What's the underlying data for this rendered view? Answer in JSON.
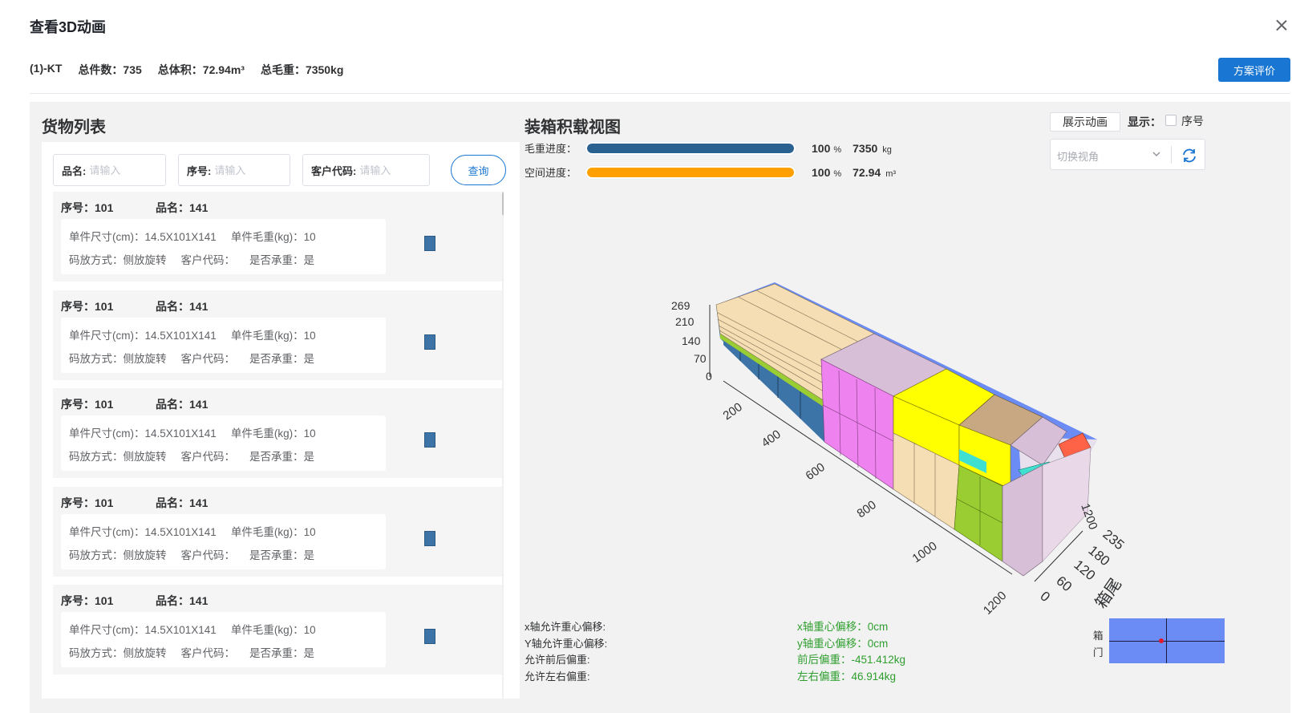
{
  "dialog": {
    "title": "查看3D动画",
    "close_icon": "close-icon"
  },
  "summary": {
    "plan": "(1)-KT",
    "total_pieces": "总件数：735",
    "total_volume": "总体积：72.94m³",
    "total_weight": "总毛重：7350kg"
  },
  "toolbar": {
    "evaluate_label": "方案评价"
  },
  "cargo_list": {
    "title": "货物列表",
    "filters": [
      {
        "label": "品名:",
        "placeholder": "请输入"
      },
      {
        "label": "序号:",
        "placeholder": "请输入"
      },
      {
        "label": "客户代码:",
        "placeholder": "请输入"
      }
    ],
    "query_label": "查询",
    "items": [
      {
        "seq": "序号：101",
        "name": "品名：141",
        "size": "单件尺寸(cm)：14.5X101X141",
        "weight": "单件毛重(kg)：10",
        "placement": "码放方式：侧放旋转",
        "customer": "客户代码：",
        "bearing": "是否承重：是",
        "icon": "box-icon",
        "color": "#3c74a8"
      },
      {
        "seq": "序号：101",
        "name": "品名：141",
        "size": "单件尺寸(cm)：14.5X101X141",
        "weight": "单件毛重(kg)：10",
        "placement": "码放方式：侧放旋转",
        "customer": "客户代码：",
        "bearing": "是否承重：是",
        "icon": "box-icon",
        "color": "#3c74a8"
      },
      {
        "seq": "序号：101",
        "name": "品名：141",
        "size": "单件尺寸(cm)：14.5X101X141",
        "weight": "单件毛重(kg)：10",
        "placement": "码放方式：侧放旋转",
        "customer": "客户代码：",
        "bearing": "是否承重：是",
        "icon": "box-icon",
        "color": "#3c74a8"
      },
      {
        "seq": "序号：101",
        "name": "品名：141",
        "size": "单件尺寸(cm)：14.5X101X141",
        "weight": "单件毛重(kg)：10",
        "placement": "码放方式：侧放旋转",
        "customer": "客户代码：",
        "bearing": "是否承重：是",
        "icon": "box-icon",
        "color": "#3c74a8"
      },
      {
        "seq": "序号：101",
        "name": "品名：141",
        "size": "单件尺寸(cm)：14.5X101X141",
        "weight": "单件毛重(kg)：10",
        "placement": "码放方式：侧放旋转",
        "customer": "客户代码：",
        "bearing": "是否承重：是",
        "icon": "box-icon",
        "color": "#3c74a8"
      }
    ]
  },
  "load_view": {
    "title": "装箱积载视图",
    "weight_progress": {
      "label": "毛重进度：",
      "percent": 100,
      "percent_text": "100",
      "percent_unit": "%",
      "amount": "7350",
      "unit": "kg",
      "color": "#2b6190"
    },
    "space_progress": {
      "label": "空间进度：",
      "percent": 100,
      "percent_text": "100",
      "percent_unit": "%",
      "amount": "72.94",
      "unit": "m³",
      "color": "#ffa000"
    },
    "show_animation_label": "展示动画",
    "display_label": "显示：",
    "seq_checkbox_label": "序号",
    "seq_checked": false,
    "view_select_placeholder": "切换视角",
    "refresh_icon": "refresh-icon",
    "scene": {
      "z_ticks": [
        "269",
        "210",
        "140",
        "70",
        "0"
      ],
      "x_ticks": [
        "200",
        "400",
        "600",
        "800",
        "1000",
        "1200"
      ],
      "y_ticks": [
        "0",
        "60",
        "120",
        "180",
        "235"
      ],
      "y_side_tick": "1200",
      "rear_label": "箱尾",
      "container_color": "#6b8cf5",
      "cargo_colors": [
        "#3c74a8",
        "#f5deb3",
        "#ee82ee",
        "#d8bfd8",
        "#ffff00",
        "#9acd32",
        "#c8a882",
        "#40e0d0",
        "#ff6347"
      ]
    },
    "stats_left": [
      "x轴允许重心偏移:",
      "Y轴允许重心偏移:",
      "允许前后偏重:",
      "允许左右偏重:"
    ],
    "stats_right": [
      "x轴重心偏移：0cm",
      "y轴重心偏移：0cm",
      "前后偏重：-451.412kg",
      "左右偏重：46.914kg"
    ],
    "door_label": [
      "箱",
      "门"
    ],
    "cg_color": "#6b8cf5"
  }
}
